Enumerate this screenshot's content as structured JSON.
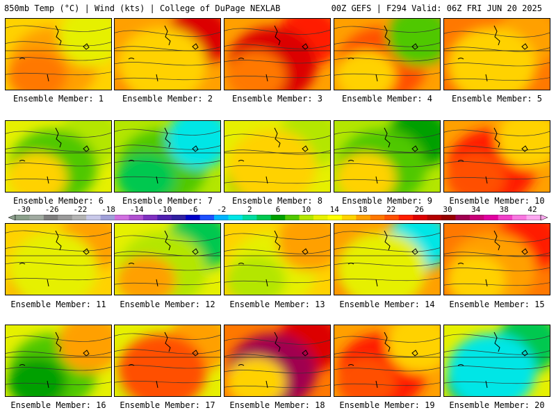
{
  "header": {
    "left_title": "850mb Temp (°C) | Wind (kts) | College of DuPage NEXLAB",
    "right_title": "00Z GEFS | F294 Valid: 06Z FRI JUN 20 2025"
  },
  "colorbar": {
    "labels": [
      "-30",
      "-26",
      "-22",
      "-18",
      "-14",
      "-10",
      "-6",
      "-2",
      "2",
      "6",
      "10",
      "14",
      "18",
      "22",
      "26",
      "30",
      "34",
      "38",
      "42"
    ],
    "colors": [
      "#8ca08c",
      "#a0aaa0",
      "#7e7e7e",
      "#9a9a9a",
      "#b4b4b4",
      "#c8c8e8",
      "#a0a0d8",
      "#d070e0",
      "#b050d0",
      "#8030c0",
      "#5020b0",
      "#3020a0",
      "#0000c8",
      "#1e50ff",
      "#00b4ff",
      "#00e6e6",
      "#00dca0",
      "#00c850",
      "#00a000",
      "#50c800",
      "#b4e600",
      "#e6f000",
      "#ffff00",
      "#ffd200",
      "#ffa000",
      "#ff7800",
      "#ff5000",
      "#ff1e00",
      "#dc0000",
      "#b40000",
      "#960000",
      "#a00050",
      "#c80078",
      "#e000a0",
      "#f040c8",
      "#f878e0",
      "#fca8f0"
    ]
  },
  "members": [
    {
      "label": "Ensemble Member: 1",
      "base": "#ffd200",
      "blobs": [
        "#ffa000",
        "#ff7800",
        "#e6f000"
      ]
    },
    {
      "label": "Ensemble Member: 2",
      "base": "#ffa000",
      "blobs": [
        "#ff1e00",
        "#dc0000",
        "#ffd200"
      ]
    },
    {
      "label": "Ensemble Member: 3",
      "base": "#ffa000",
      "blobs": [
        "#ff1e00",
        "#dc0000",
        "#ff7800"
      ]
    },
    {
      "label": "Ensemble Member: 4",
      "base": "#ffa000",
      "blobs": [
        "#ff5000",
        "#ffd200",
        "#50c800"
      ]
    },
    {
      "label": "Ensemble Member: 5",
      "base": "#ff7800",
      "blobs": [
        "#ff1e00",
        "#ffa000",
        "#ffd200"
      ]
    },
    {
      "label": "Ensemble Member: 6",
      "base": "#e6f000",
      "blobs": [
        "#b4e600",
        "#50c800",
        "#ffd200"
      ]
    },
    {
      "label": "Ensemble Member: 7",
      "base": "#b4e600",
      "blobs": [
        "#50c800",
        "#00c850",
        "#00e6e6"
      ]
    },
    {
      "label": "Ensemble Member: 8",
      "base": "#e6f000",
      "blobs": [
        "#50c800",
        "#b4e600",
        "#ffd200"
      ]
    },
    {
      "label": "Ensemble Member: 9",
      "base": "#b4e600",
      "blobs": [
        "#00a000",
        "#50c800",
        "#ffd200"
      ]
    },
    {
      "label": "Ensemble Member: 10",
      "base": "#ffa000",
      "blobs": [
        "#ff1e00",
        "#ff5000",
        "#ffd200"
      ]
    },
    {
      "label": "Ensemble Member: 11",
      "base": "#ffd200",
      "blobs": [
        "#ff7800",
        "#ffa000",
        "#e6f000"
      ]
    },
    {
      "label": "Ensemble Member: 12",
      "base": "#e6f000",
      "blobs": [
        "#00c850",
        "#b4e600",
        "#ffa000"
      ]
    },
    {
      "label": "Ensemble Member: 13",
      "base": "#ffd200",
      "blobs": [
        "#e6f000",
        "#b4e600",
        "#ffa000"
      ]
    },
    {
      "label": "Ensemble Member: 14",
      "base": "#ffa000",
      "blobs": [
        "#ff1e00",
        "#00e6e6",
        "#e6f000"
      ]
    },
    {
      "label": "Ensemble Member: 15",
      "base": "#ff7800",
      "blobs": [
        "#ff1e00",
        "#ffa000",
        "#ffd200"
      ]
    },
    {
      "label": "Ensemble Member: 16",
      "base": "#e6f000",
      "blobs": [
        "#50c800",
        "#00a000",
        "#ffa000"
      ]
    },
    {
      "label": "Ensemble Member: 17",
      "base": "#e6f000",
      "blobs": [
        "#b4e600",
        "#ffa000",
        "#ff5000"
      ]
    },
    {
      "label": "Ensemble Member: 18",
      "base": "#ff7800",
      "blobs": [
        "#dc0000",
        "#a00050",
        "#ffd200"
      ]
    },
    {
      "label": "Ensemble Member: 19",
      "base": "#ffa000",
      "blobs": [
        "#ff1e00",
        "#ff5000",
        "#ffd200"
      ]
    },
    {
      "label": "Ensemble Member: 20",
      "base": "#e6f000",
      "blobs": [
        "#00a000",
        "#00c850",
        "#00e6e6"
      ]
    }
  ]
}
